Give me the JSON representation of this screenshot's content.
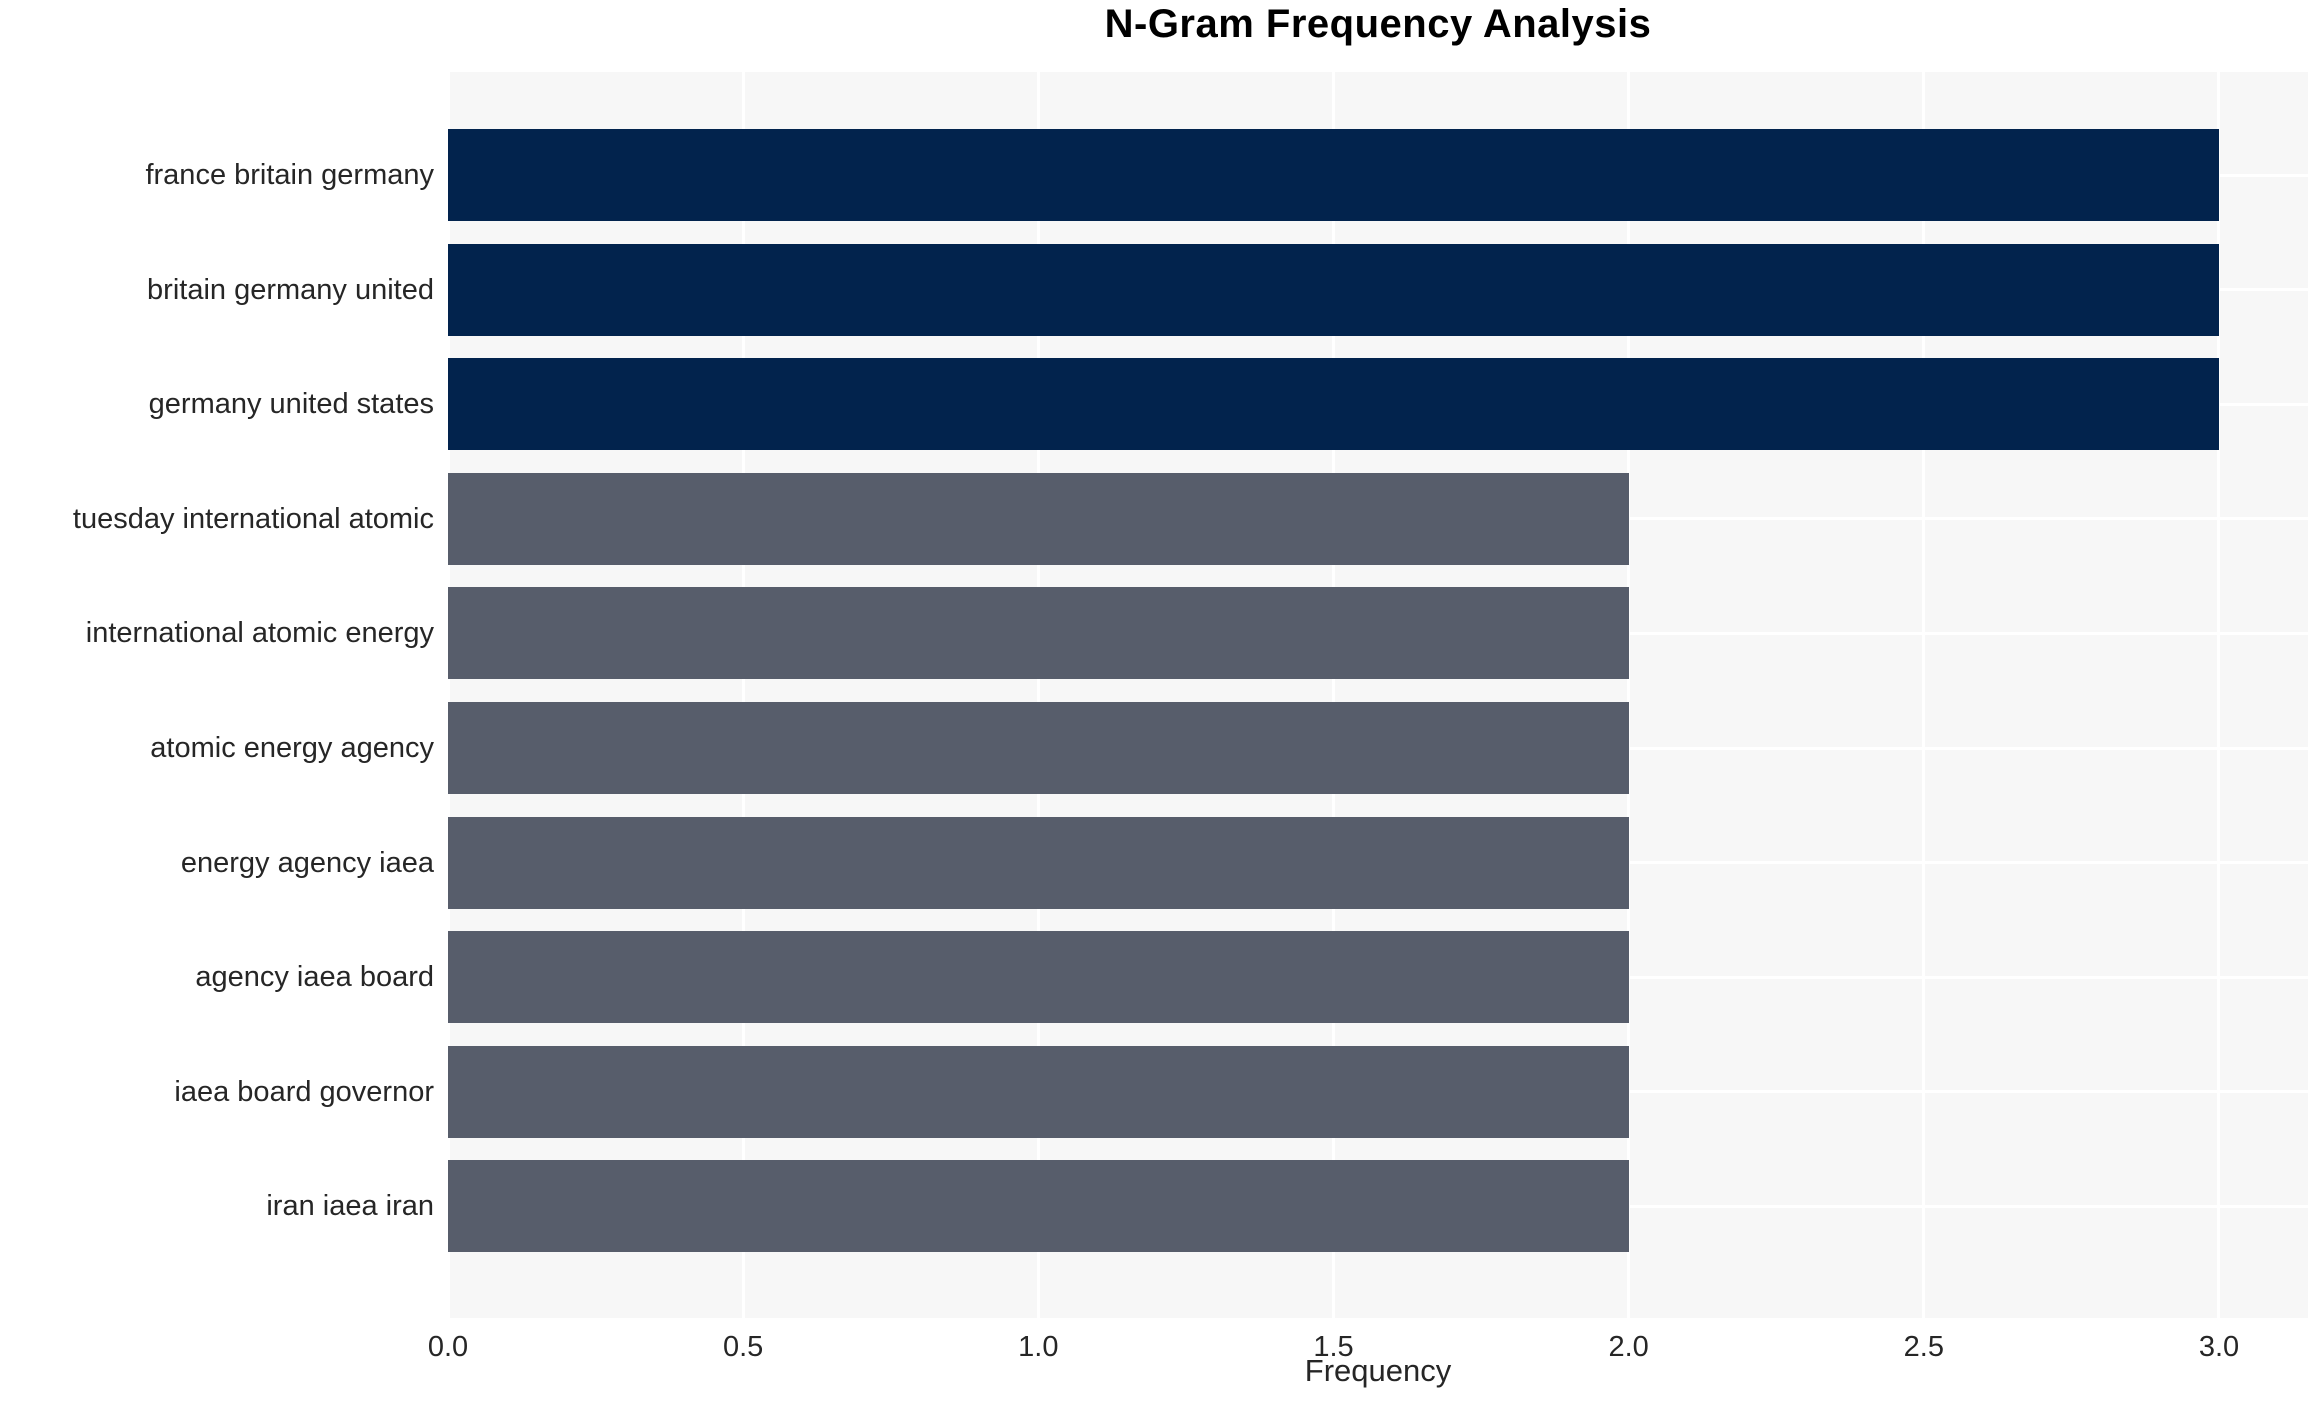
{
  "chart_data": {
    "type": "bar",
    "orientation": "horizontal",
    "title": "N-Gram Frequency Analysis",
    "xlabel": "Frequency",
    "ylabel": "",
    "legend": null,
    "grid": true,
    "xlim": [
      0,
      3.15
    ],
    "categories": [
      "france britain germany",
      "britain germany united",
      "germany united states",
      "tuesday international atomic",
      "international atomic energy",
      "atomic energy agency",
      "energy agency iaea",
      "agency iaea board",
      "iaea board governor",
      "iran iaea iran"
    ],
    "values": [
      3,
      3,
      3,
      2,
      2,
      2,
      2,
      2,
      2,
      2
    ],
    "bars": [
      {
        "label": "france britain germany",
        "value": 3,
        "color": "#02234d"
      },
      {
        "label": "britain germany united",
        "value": 3,
        "color": "#02234d"
      },
      {
        "label": "germany united states",
        "value": 3,
        "color": "#02234d"
      },
      {
        "label": "tuesday international atomic",
        "value": 2,
        "color": "#575d6b"
      },
      {
        "label": "international atomic energy",
        "value": 2,
        "color": "#575d6b"
      },
      {
        "label": "atomic energy agency",
        "value": 2,
        "color": "#575d6b"
      },
      {
        "label": "energy agency iaea",
        "value": 2,
        "color": "#575d6b"
      },
      {
        "label": "agency iaea board",
        "value": 2,
        "color": "#575d6b"
      },
      {
        "label": "iaea board governor",
        "value": 2,
        "color": "#575d6b"
      },
      {
        "label": "iran iaea iran",
        "value": 2,
        "color": "#575d6b"
      }
    ],
    "x_axis": {
      "label": "Frequency",
      "ticks": [
        {
          "label": "0.0",
          "value": 0.0
        },
        {
          "label": "0.5",
          "value": 0.5
        },
        {
          "label": "1.0",
          "value": 1.0
        },
        {
          "label": "1.5",
          "value": 1.5
        },
        {
          "label": "2.0",
          "value": 2.0
        },
        {
          "label": "2.5",
          "value": 2.5
        },
        {
          "label": "3.0",
          "value": 3.0
        }
      ]
    },
    "colors": {
      "bar_high": "#02234d",
      "bar_low": "#575d6b",
      "plot_background": "#f7f7f7",
      "grid_line": "#ffffff",
      "text": "#262626",
      "title": "#000000"
    }
  }
}
